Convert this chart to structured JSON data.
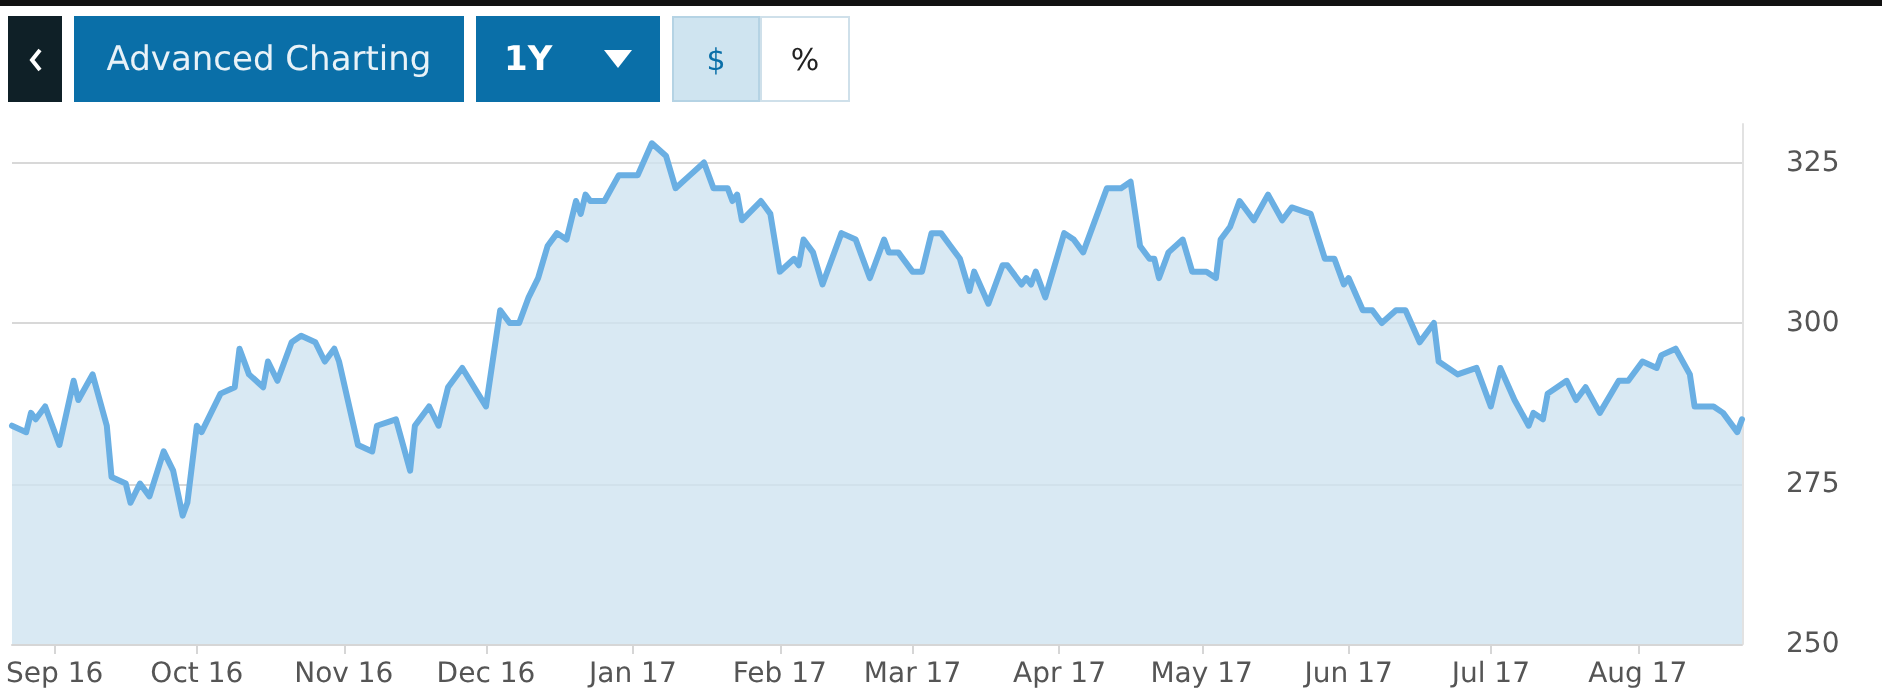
{
  "chart_data": {
    "type": "area",
    "annotations": [
      "Advanced Charting",
      "1Y",
      "$",
      "%"
    ],
    "x": [
      "2016-08-23",
      "2016-08-26",
      "2016-08-27",
      "2016-08-28",
      "2016-08-30",
      "2016-09-02",
      "2016-09-05",
      "2016-09-06",
      "2016-09-09",
      "2016-09-12",
      "2016-09-13",
      "2016-09-16",
      "2016-09-17",
      "2016-09-19",
      "2016-09-21",
      "2016-09-24",
      "2016-09-26",
      "2016-09-28",
      "2016-09-29",
      "2016-10-01",
      "2016-10-02",
      "2016-10-06",
      "2016-10-09",
      "2016-10-10",
      "2016-10-12",
      "2016-10-15",
      "2016-10-16",
      "2016-10-18",
      "2016-10-21",
      "2016-10-23",
      "2016-10-26",
      "2016-10-28",
      "2016-10-30",
      "2016-10-31",
      "2016-11-04",
      "2016-11-07",
      "2016-11-08",
      "2016-11-12",
      "2016-11-15",
      "2016-11-16",
      "2016-11-19",
      "2016-11-21",
      "2016-11-23",
      "2016-11-26",
      "2016-12-01",
      "2016-12-04",
      "2016-12-06",
      "2016-12-08",
      "2016-12-10",
      "2016-12-12",
      "2016-12-14",
      "2016-12-16",
      "2016-12-18",
      "2016-12-20",
      "2016-12-21",
      "2016-12-22",
      "2016-12-23",
      "2016-12-26",
      "2016-12-29",
      "2017-01-02",
      "2017-01-05",
      "2017-01-08",
      "2017-01-10",
      "2017-01-13",
      "2017-01-16",
      "2017-01-18",
      "2017-01-21",
      "2017-01-22",
      "2017-01-23",
      "2017-01-24",
      "2017-01-28",
      "2017-01-30",
      "2017-02-01",
      "2017-02-04",
      "2017-02-05",
      "2017-02-06",
      "2017-02-08",
      "2017-02-10",
      "2017-02-14",
      "2017-02-17",
      "2017-02-20",
      "2017-02-23",
      "2017-02-24",
      "2017-02-26",
      "2017-03-01",
      "2017-03-03",
      "2017-03-05",
      "2017-03-07",
      "2017-03-09",
      "2017-03-11",
      "2017-03-13",
      "2017-03-14",
      "2017-03-17",
      "2017-03-20",
      "2017-03-21",
      "2017-03-24",
      "2017-03-25",
      "2017-03-26",
      "2017-03-27",
      "2017-03-29",
      "2017-04-02",
      "2017-04-04",
      "2017-04-06",
      "2017-04-11",
      "2017-04-14",
      "2017-04-16",
      "2017-04-18",
      "2017-04-20",
      "2017-04-21",
      "2017-04-22",
      "2017-04-24",
      "2017-04-27",
      "2017-04-29",
      "2017-05-02",
      "2017-05-04",
      "2017-05-05",
      "2017-05-07",
      "2017-05-09",
      "2017-05-12",
      "2017-05-15",
      "2017-05-18",
      "2017-05-20",
      "2017-05-24",
      "2017-05-27",
      "2017-05-29",
      "2017-05-31",
      "2017-06-01",
      "2017-06-04",
      "2017-06-06",
      "2017-06-08",
      "2017-06-11",
      "2017-06-13",
      "2017-06-16",
      "2017-06-19",
      "2017-06-20",
      "2017-06-24",
      "2017-06-28",
      "2017-07-01",
      "2017-07-03",
      "2017-07-06",
      "2017-07-09",
      "2017-07-10",
      "2017-07-12",
      "2017-07-13",
      "2017-07-17",
      "2017-07-19",
      "2017-07-21",
      "2017-07-24",
      "2017-07-28",
      "2017-07-30",
      "2017-08-02",
      "2017-08-05",
      "2017-08-06",
      "2017-08-09",
      "2017-08-12",
      "2017-08-13",
      "2017-08-16",
      "2017-08-17",
      "2017-08-19",
      "2017-08-22",
      "2017-08-23"
    ],
    "series": [
      {
        "color": "#6aafe3",
        "values": [
          284,
          283,
          286,
          285,
          287,
          281,
          291,
          288,
          292,
          284,
          276,
          275,
          272,
          275,
          273,
          280,
          277,
          270,
          272,
          284,
          283,
          289,
          290,
          296,
          292,
          290,
          294,
          291,
          297,
          298,
          297,
          294,
          296,
          294,
          281,
          280,
          284,
          285,
          277,
          284,
          287,
          284,
          290,
          293,
          287,
          302,
          300,
          300,
          304,
          307,
          312,
          314,
          313,
          319,
          317,
          320,
          319,
          319,
          323,
          323,
          328,
          326,
          321,
          323,
          325,
          321,
          321,
          319,
          320,
          316,
          319,
          317,
          308,
          310,
          309,
          313,
          311,
          306,
          314,
          313,
          307,
          313,
          311,
          311,
          308,
          308,
          314,
          314,
          312,
          310,
          305,
          308,
          303,
          309,
          309,
          306,
          307,
          306,
          308,
          304,
          314,
          313,
          311,
          321,
          321,
          322,
          312,
          310,
          310,
          307,
          311,
          313,
          308,
          308,
          307,
          313,
          315,
          319,
          316,
          320,
          316,
          318,
          317,
          310,
          310,
          306,
          307,
          302,
          302,
          300,
          302,
          302,
          297,
          300,
          294,
          292,
          293,
          287,
          293,
          288,
          284,
          286,
          285,
          289,
          291,
          288,
          290,
          286,
          291,
          291,
          294,
          293,
          295,
          296,
          292,
          287,
          287,
          287,
          286,
          283,
          285
        ]
      }
    ],
    "xlim": [
      "2016-08-23",
      "2017-08-23"
    ],
    "xticks": [
      {
        "value": "2016-09-01",
        "label": "Sep 16"
      },
      {
        "value": "2016-10-01",
        "label": "Oct 16"
      },
      {
        "value": "2016-11-01",
        "label": "Nov 16"
      },
      {
        "value": "2016-12-01",
        "label": "Dec 16"
      },
      {
        "value": "2017-01-01",
        "label": "Jan 17"
      },
      {
        "value": "2017-02-01",
        "label": "Feb 17"
      },
      {
        "value": "2017-03-01",
        "label": "Mar 17"
      },
      {
        "value": "2017-04-01",
        "label": "Apr 17"
      },
      {
        "value": "2017-05-01",
        "label": "May 17"
      },
      {
        "value": "2017-06-01",
        "label": "Jun 17"
      },
      {
        "value": "2017-07-01",
        "label": "Jul 17"
      },
      {
        "value": "2017-08-01",
        "label": "Aug 17"
      }
    ],
    "ylim": [
      250,
      331
    ],
    "yticks": [
      250,
      275,
      300,
      325
    ],
    "grid": "y"
  }
}
